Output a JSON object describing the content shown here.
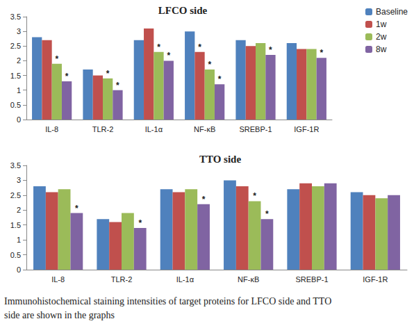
{
  "chart_data": [
    {
      "type": "bar",
      "title": "LFCO side",
      "categories": [
        "IL-8",
        "TLR-2",
        "IL-1α",
        "NF-κB",
        "SREBP-1",
        "IGF-1R"
      ],
      "series": [
        {
          "name": "Baseline",
          "color": "#4f81bd",
          "values": [
            2.8,
            1.7,
            2.7,
            3.0,
            2.7,
            2.6
          ],
          "significance": [
            null,
            null,
            null,
            null,
            null,
            null
          ]
        },
        {
          "name": "1w",
          "color": "#c0504d",
          "values": [
            2.7,
            1.5,
            3.1,
            2.3,
            2.5,
            2.4
          ],
          "significance": [
            null,
            null,
            null,
            "*",
            null,
            null
          ]
        },
        {
          "name": "2w",
          "color": "#9bbb59",
          "values": [
            1.9,
            1.4,
            2.3,
            1.7,
            2.6,
            2.4
          ],
          "significance": [
            "*",
            "*",
            "*",
            "*",
            null,
            null
          ]
        },
        {
          "name": "8w",
          "color": "#8064a2",
          "values": [
            1.3,
            1.0,
            2.0,
            1.2,
            2.2,
            2.1
          ],
          "significance": [
            "*",
            "*",
            "*",
            "*",
            "*",
            "*"
          ]
        }
      ],
      "ylim": [
        0,
        3.5
      ],
      "yticks": [
        0,
        0.5,
        1,
        1.5,
        2,
        2.5,
        3,
        3.5
      ],
      "grid": false,
      "legend": "right"
    },
    {
      "type": "bar",
      "title": "TTO side",
      "categories": [
        "IL-8",
        "TLR-2",
        "IL-1α",
        "NF-κB",
        "SREBP-1",
        "IGF-1R"
      ],
      "series": [
        {
          "name": "Baseline",
          "color": "#4f81bd",
          "values": [
            2.8,
            1.7,
            2.7,
            3.0,
            2.7,
            2.6
          ],
          "significance": [
            null,
            null,
            null,
            null,
            null,
            null
          ]
        },
        {
          "name": "1w",
          "color": "#c0504d",
          "values": [
            2.6,
            1.6,
            2.6,
            2.8,
            2.9,
            2.5
          ],
          "significance": [
            null,
            null,
            null,
            null,
            null,
            null
          ]
        },
        {
          "name": "2w",
          "color": "#9bbb59",
          "values": [
            2.7,
            1.9,
            2.7,
            2.3,
            2.8,
            2.4
          ],
          "significance": [
            null,
            null,
            null,
            "*",
            null,
            null
          ]
        },
        {
          "name": "8w",
          "color": "#8064a2",
          "values": [
            1.9,
            1.4,
            2.2,
            1.7,
            2.9,
            2.5
          ],
          "significance": [
            "*",
            "*",
            "*",
            "*",
            null,
            null
          ]
        }
      ],
      "ylim": [
        0,
        3.5
      ],
      "yticks": [
        0,
        0.5,
        1,
        1.5,
        2,
        2.5,
        3,
        3.5
      ],
      "grid": false
    }
  ],
  "caption": "Immunohistochemical staining intensities of target proteins for  LFCO side and TTO side are shown in the graphs"
}
